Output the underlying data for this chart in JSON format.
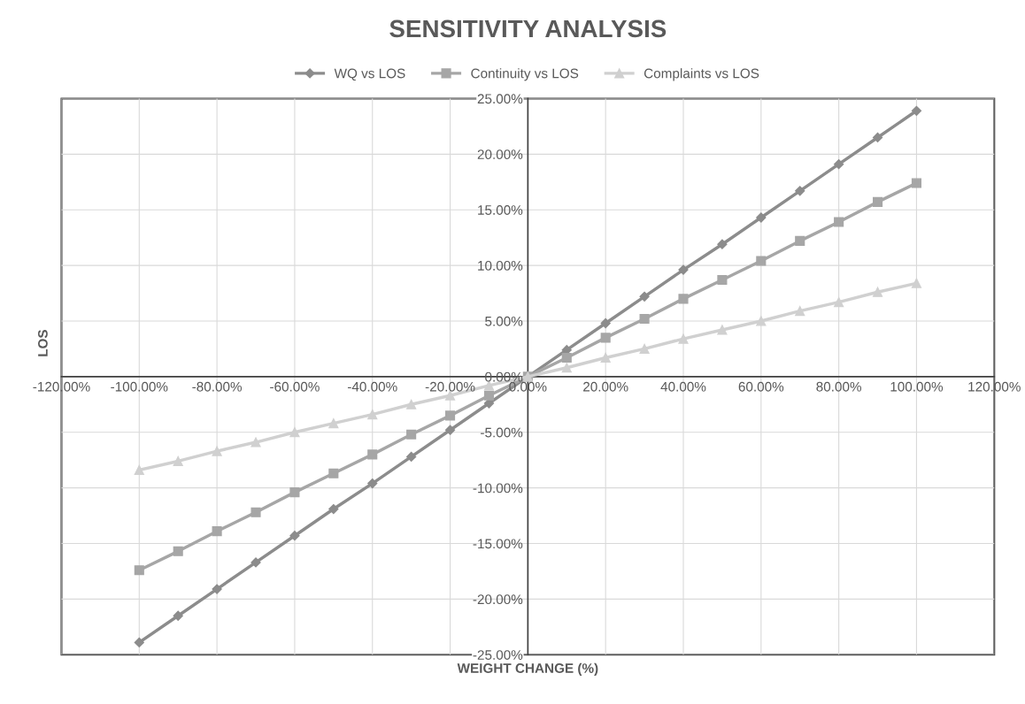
{
  "chart_data": {
    "type": "line",
    "title": "SENSITIVITY ANALYSIS",
    "xlabel": "WEIGHT CHANGE (%)",
    "ylabel": "LOS",
    "x": [
      -100,
      -90,
      -80,
      -70,
      -60,
      -50,
      -40,
      -30,
      -20,
      -10,
      0,
      10,
      20,
      30,
      40,
      50,
      60,
      70,
      80,
      90,
      100
    ],
    "series": [
      {
        "name": "WQ vs LOS",
        "color": "#8c8c8c",
        "marker": "diamond",
        "values": [
          -23.9,
          -21.5,
          -19.1,
          -16.7,
          -14.3,
          -11.9,
          -9.6,
          -7.2,
          -4.8,
          -2.4,
          0,
          2.4,
          4.8,
          7.2,
          9.6,
          11.9,
          14.3,
          16.7,
          19.1,
          21.5,
          23.9
        ]
      },
      {
        "name": "Continuity vs LOS",
        "color": "#a6a6a6",
        "marker": "square",
        "values": [
          -17.4,
          -15.7,
          -13.9,
          -12.2,
          -10.4,
          -8.7,
          -7.0,
          -5.2,
          -3.5,
          -1.7,
          0,
          1.7,
          3.5,
          5.2,
          7.0,
          8.7,
          10.4,
          12.2,
          13.9,
          15.7,
          17.4
        ]
      },
      {
        "name": "Complaints vs LOS",
        "color": "#d0d0d0",
        "marker": "triangle",
        "values": [
          -8.4,
          -7.6,
          -6.7,
          -5.9,
          -5.0,
          -4.2,
          -3.4,
          -2.5,
          -1.7,
          -0.8,
          0,
          0.8,
          1.7,
          2.5,
          3.4,
          4.2,
          5.0,
          5.9,
          6.7,
          7.6,
          8.4
        ]
      }
    ],
    "xlim": [
      -120,
      120
    ],
    "xticks": [
      {
        "value": -120,
        "label": "-120.00%"
      },
      {
        "value": -100,
        "label": "-100.00%"
      },
      {
        "value": -80,
        "label": "-80.00%"
      },
      {
        "value": -60,
        "label": "-60.00%"
      },
      {
        "value": -40,
        "label": "-40.00%"
      },
      {
        "value": -20,
        "label": "-20.00%"
      },
      {
        "value": 0,
        "label": "0.00%"
      },
      {
        "value": 20,
        "label": "20.00%"
      },
      {
        "value": 40,
        "label": "40.00%"
      },
      {
        "value": 60,
        "label": "60.00%"
      },
      {
        "value": 80,
        "label": "80.00%"
      },
      {
        "value": 100,
        "label": "100.00%"
      },
      {
        "value": 120,
        "label": "120.00%"
      }
    ],
    "ylim": [
      -25,
      25
    ],
    "yticks": [
      {
        "value": -25,
        "label": "-25.00%"
      },
      {
        "value": -20,
        "label": "-20.00%"
      },
      {
        "value": -15,
        "label": "-15.00%"
      },
      {
        "value": -10,
        "label": "-10.00%"
      },
      {
        "value": -5,
        "label": "-5.00%"
      },
      {
        "value": 0,
        "label": "0.00%"
      },
      {
        "value": 5,
        "label": "5.00%"
      },
      {
        "value": 10,
        "label": "10.00%"
      },
      {
        "value": 15,
        "label": "15.00%"
      },
      {
        "value": 20,
        "label": "20.00%"
      },
      {
        "value": 25,
        "label": "25.00%"
      }
    ],
    "grid": true,
    "legend": "top",
    "line_style": "solid"
  }
}
